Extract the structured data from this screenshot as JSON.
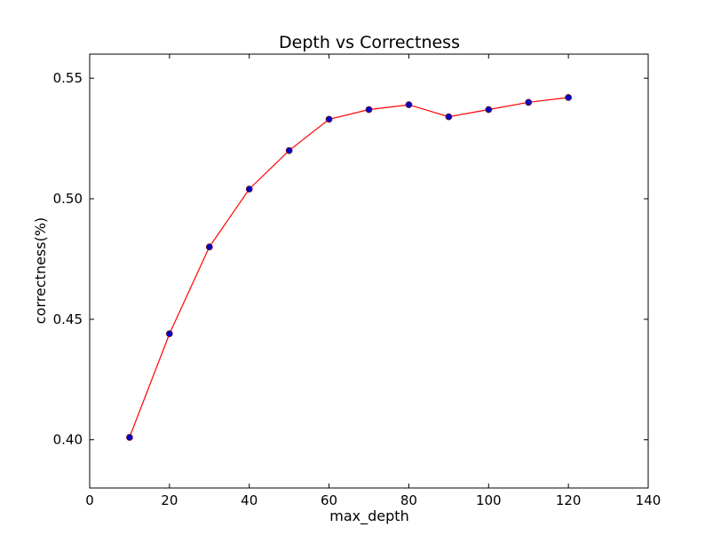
{
  "chart_data": {
    "type": "line",
    "title": "Depth vs Correctness",
    "xlabel": "max_depth",
    "ylabel": "correctness(%)",
    "xlim": [
      0,
      140
    ],
    "ylim": [
      0.38,
      0.56
    ],
    "xticks": [
      0,
      20,
      40,
      60,
      80,
      100,
      120,
      140
    ],
    "xtick_labels": [
      "0",
      "20",
      "40",
      "60",
      "80",
      "100",
      "120",
      "140"
    ],
    "yticks": [
      0.4,
      0.45,
      0.5,
      0.55
    ],
    "ytick_labels": [
      "0.40",
      "0.45",
      "0.50",
      "0.55"
    ],
    "grid": false,
    "series": [
      {
        "line_color": "#ff0000",
        "marker_face": "#0000cc",
        "marker_edge": "#7a1f1f",
        "x": [
          10,
          20,
          30,
          40,
          50,
          60,
          70,
          80,
          90,
          100,
          110,
          120
        ],
        "y": [
          0.401,
          0.444,
          0.48,
          0.504,
          0.52,
          0.533,
          0.537,
          0.539,
          0.534,
          0.537,
          0.54,
          0.542
        ]
      }
    ]
  }
}
